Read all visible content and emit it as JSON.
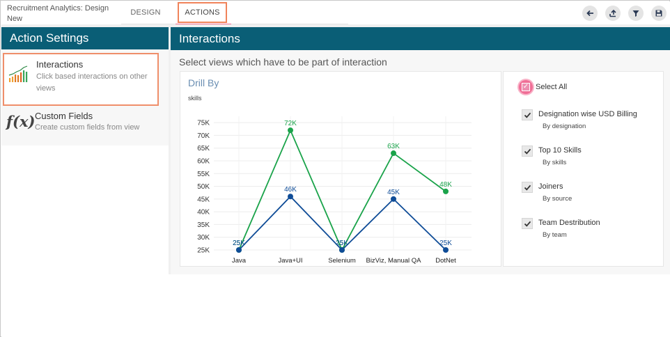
{
  "app": {
    "title": "Recruitment Analytics: Design New"
  },
  "tabs": [
    {
      "label": "DESIGN",
      "active": false
    },
    {
      "label": "ACTIONS",
      "active": true
    }
  ],
  "toolbar": {
    "icons": [
      "back-arrow-icon",
      "export-icon",
      "filter-icon",
      "save-icon"
    ]
  },
  "left_panel": {
    "header": "Action Settings",
    "items": [
      {
        "title": "Interactions",
        "description": "Click based interactions on other views",
        "icon": "bar-line-chart-icon",
        "selected": true
      },
      {
        "title": "Custom Fields",
        "description": "Create custom fields from view",
        "icon": "fx-icon",
        "selected": false
      }
    ]
  },
  "fx_glyph": "f(x)",
  "right_panel": {
    "header": "Interactions",
    "subtitle": "Select views which have to be part of interaction"
  },
  "chart_card": {
    "title": "Drill By",
    "subtitle": "skills"
  },
  "chart_data": {
    "type": "line",
    "categories": [
      "Java",
      "Java+UI",
      "Selenium",
      "BizViz, Manual QA",
      "DotNet"
    ],
    "y_ticks": [
      "25K",
      "30K",
      "35K",
      "40K",
      "45K",
      "50K",
      "55K",
      "60K",
      "65K",
      "70K",
      "75K"
    ],
    "ylim": [
      25000,
      77500
    ],
    "grid": true,
    "series": [
      {
        "color": "#1aa34a",
        "values": [
          25000,
          72000,
          25000,
          63000,
          48000
        ],
        "labels": [
          "25K",
          "72K",
          "25K",
          "63K",
          "48K"
        ]
      },
      {
        "color": "#0f4c97",
        "values": [
          25000,
          46000,
          25000,
          45000,
          25000
        ],
        "labels": [
          "25K",
          "46K",
          "25K",
          "45K",
          "25K"
        ]
      }
    ]
  },
  "views": {
    "select_all_label": "Select All",
    "select_all_checked": true,
    "items": [
      {
        "title": "Designation wise USD Billing",
        "sub": "By designation",
        "checked": true
      },
      {
        "title": "Top 10 Skills",
        "sub": "By skills",
        "checked": true
      },
      {
        "title": "Joiners",
        "sub": "By source",
        "checked": true
      },
      {
        "title": "Team Destribution",
        "sub": "By team",
        "checked": true
      }
    ]
  },
  "colors": {
    "header_bg": "#0a5e76",
    "active_tab_border": "#f0835a",
    "select_all": "#f06e96"
  }
}
